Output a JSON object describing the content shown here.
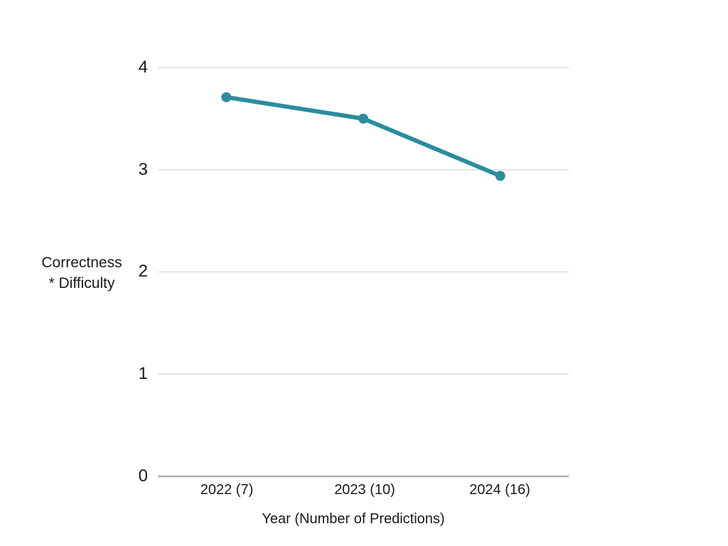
{
  "chart_data": {
    "type": "line",
    "title": "",
    "categories": [
      "2022 (7)",
      "2023 (10)",
      "2024 (16)"
    ],
    "series": [
      {
        "name": "Correctness * Difficulty",
        "values": [
          3.71,
          3.5,
          2.94
        ]
      }
    ],
    "xlabel": "Year (Number of Predictions)",
    "ylabel": "Correctness * Difficulty",
    "ylabel_lines": [
      "Correctness",
      "* Difficulty"
    ],
    "y_ticks": [
      0,
      1,
      2,
      3,
      4
    ],
    "y_tick_labels_top_to_bottom": [
      "4",
      "3",
      "2",
      "1",
      "0"
    ],
    "ylim": [
      0,
      4
    ],
    "grid": true,
    "legend": "none",
    "colors": {
      "line": "#2b8c9e",
      "point": "#2b8c9e",
      "gridline": "#e4e4e4",
      "axis_line": "#b0b0b0",
      "text": "#1a1a1a",
      "background": "#ffffff"
    }
  }
}
